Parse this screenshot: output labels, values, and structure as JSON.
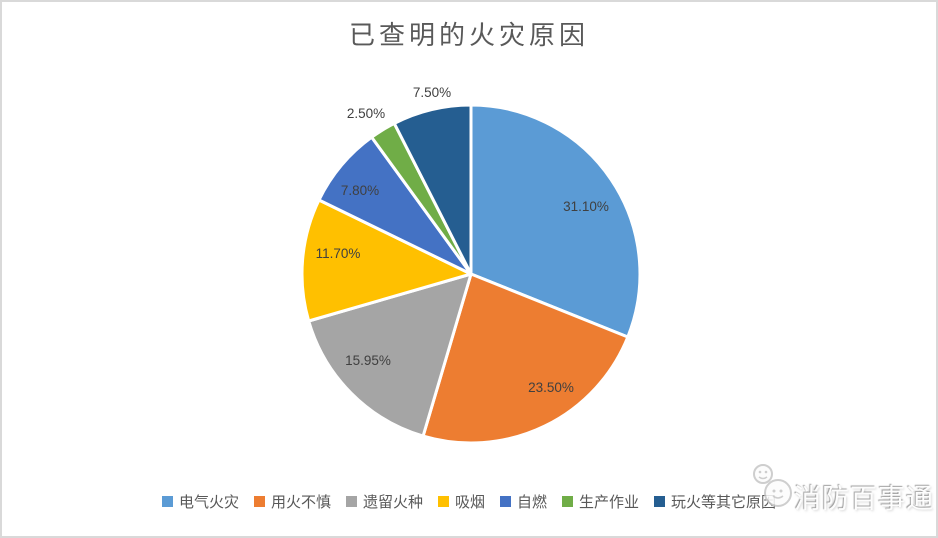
{
  "chart_data": {
    "type": "pie",
    "title": "已查明的火灾原因",
    "start_angle_deg": 0,
    "direction": "clockwise",
    "legend_position": "bottom",
    "grid": false,
    "label_color": "#404040",
    "slice_border_color": "#FFFFFF",
    "slices": [
      {
        "label": "电气火灾",
        "value": 31.1,
        "display": "31.10%",
        "color": "#5B9BD5",
        "label_placement": "inside"
      },
      {
        "label": "用火不慎",
        "value": 23.5,
        "display": "23.50%",
        "color": "#ED7D31",
        "label_placement": "inside"
      },
      {
        "label": "遗留火种",
        "value": 15.95,
        "display": "15.95%",
        "color": "#A5A5A5",
        "label_placement": "inside"
      },
      {
        "label": "吸烟",
        "value": 11.7,
        "display": "11.70%",
        "color": "#FFC000",
        "label_placement": "inside"
      },
      {
        "label": "自燃",
        "value": 7.8,
        "display": "7.80%",
        "color": "#4472C4",
        "label_placement": "inside"
      },
      {
        "label": "生产作业",
        "value": 2.5,
        "display": "2.50%",
        "color": "#70AD47",
        "label_placement": "outside"
      },
      {
        "label": "玩火等其它原因",
        "value": 7.5,
        "display": "7.50%",
        "color": "#255E91",
        "label_placement": "outside"
      }
    ]
  },
  "watermark": {
    "text": "消防百事通"
  },
  "colors": {
    "background": "#FFFFFF",
    "frame_border": "#D9D9D9",
    "title_text": "#595959",
    "legend_text": "#595959",
    "data_label_text": "#404040"
  }
}
